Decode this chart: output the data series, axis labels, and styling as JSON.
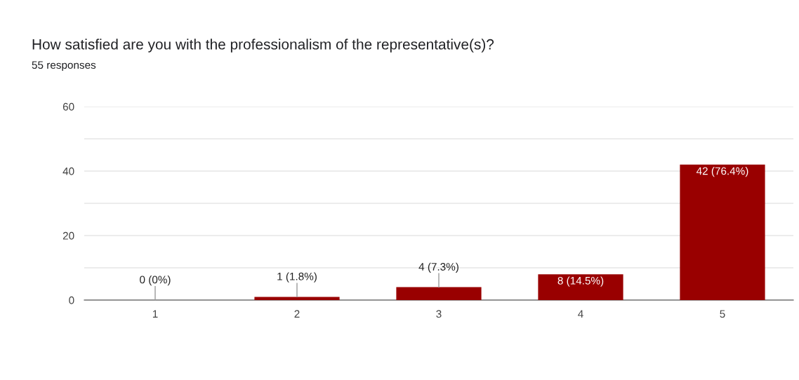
{
  "chart_data": {
    "type": "bar",
    "title": "How satisfied are you with the professionalism of the representative(s)?",
    "subtitle": "55 responses",
    "categories": [
      "1",
      "2",
      "3",
      "4",
      "5"
    ],
    "values": [
      0,
      1,
      4,
      8,
      42
    ],
    "value_labels": [
      "0 (0%)",
      "1 (1.8%)",
      "4 (7.3%)",
      "8 (14.5%)",
      "42 (76.4%)"
    ],
    "color": "#990000",
    "ylim": [
      0,
      60
    ],
    "yticks": [
      0,
      {
        "value": 10,
        "label": null
      },
      20,
      {
        "value": 30,
        "label": null
      },
      40,
      {
        "value": 50,
        "label": null
      },
      60
    ],
    "grid": "y",
    "legend": false
  }
}
